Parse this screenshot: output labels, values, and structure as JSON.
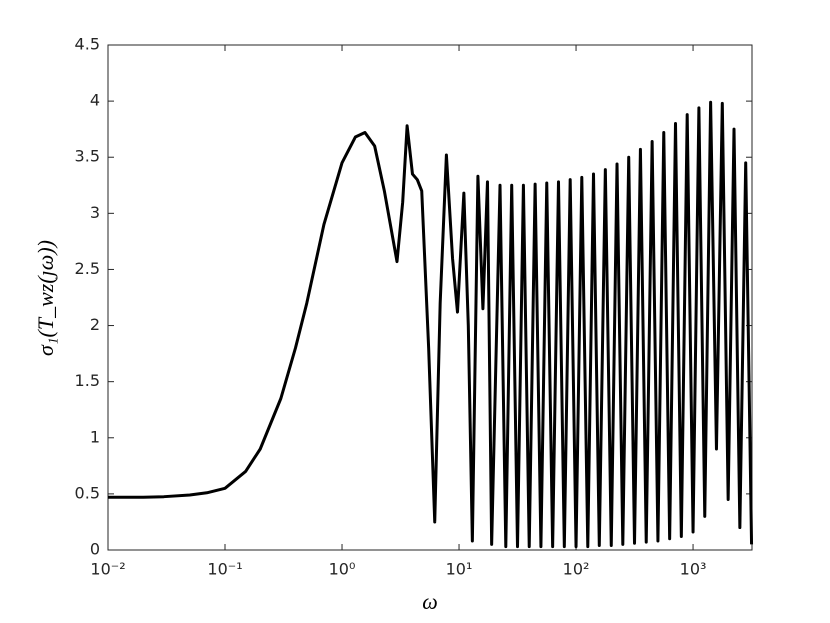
{
  "chart_data": {
    "type": "line",
    "xlabel": "ω",
    "ylabel": "σ₁(T_wz(ȷω))",
    "log_x": true,
    "color": "#000000",
    "xlim": [
      0.01,
      3190
    ],
    "ylim": [
      0,
      4.5
    ],
    "xticks": [
      {
        "value": 0.01,
        "label": "10⁻²"
      },
      {
        "value": 0.1,
        "label": "10⁻¹"
      },
      {
        "value": 1,
        "label": "10⁰"
      },
      {
        "value": 10,
        "label": "10¹"
      },
      {
        "value": 100,
        "label": "10²"
      },
      {
        "value": 1000,
        "label": "10³"
      }
    ],
    "yticks": [
      0,
      0.5,
      1,
      1.5,
      2,
      2.5,
      3,
      3.5,
      4,
      4.5
    ],
    "x": [
      0.01,
      0.02,
      0.03,
      0.05,
      0.07,
      0.1,
      0.15,
      0.2,
      0.3,
      0.4,
      0.5,
      0.7,
      1.0,
      1.3,
      1.57,
      1.9,
      2.3,
      2.95,
      3.3,
      3.6,
      4.0,
      4.4,
      4.8,
      5.5,
      6.2,
      6.9,
      7.8,
      8.8,
      9.7,
      11,
      12,
      13,
      14.5,
      16,
      17.5,
      19,
      22.4,
      25.1,
      28.2,
      31.6,
      35.5,
      39.8,
      44.7,
      50.1,
      56.2,
      63.1,
      70.8,
      79.4,
      89.1,
      100,
      112,
      126,
      141,
      158,
      178,
      200,
      224,
      251,
      282,
      316,
      355,
      398,
      447,
      501,
      562,
      631,
      708,
      794,
      891,
      1000,
      1122,
      1259,
      1413,
      1585,
      1778,
      1995,
      2239,
      2512,
      2818,
      3162
    ],
    "values": [
      0.47,
      0.47,
      0.475,
      0.49,
      0.51,
      0.55,
      0.7,
      0.9,
      1.35,
      1.8,
      2.2,
      2.9,
      3.45,
      3.68,
      3.72,
      3.6,
      3.2,
      2.57,
      3.1,
      3.78,
      3.35,
      3.3,
      3.2,
      1.8,
      0.25,
      2.2,
      3.52,
      2.6,
      2.12,
      3.18,
      2.0,
      0.08,
      3.33,
      2.15,
      3.28,
      0.05,
      3.25,
      0.03,
      3.25,
      0.03,
      3.25,
      0.03,
      3.26,
      0.03,
      3.27,
      0.03,
      3.28,
      0.03,
      3.3,
      0.03,
      3.32,
      0.03,
      3.35,
      0.04,
      3.39,
      0.04,
      3.44,
      0.05,
      3.5,
      0.06,
      3.57,
      0.07,
      3.64,
      0.08,
      3.72,
      0.1,
      3.8,
      0.12,
      3.88,
      0.16,
      3.94,
      0.3,
      3.99,
      0.9,
      3.98,
      0.45,
      3.75,
      0.2,
      3.45,
      0.05
    ]
  }
}
